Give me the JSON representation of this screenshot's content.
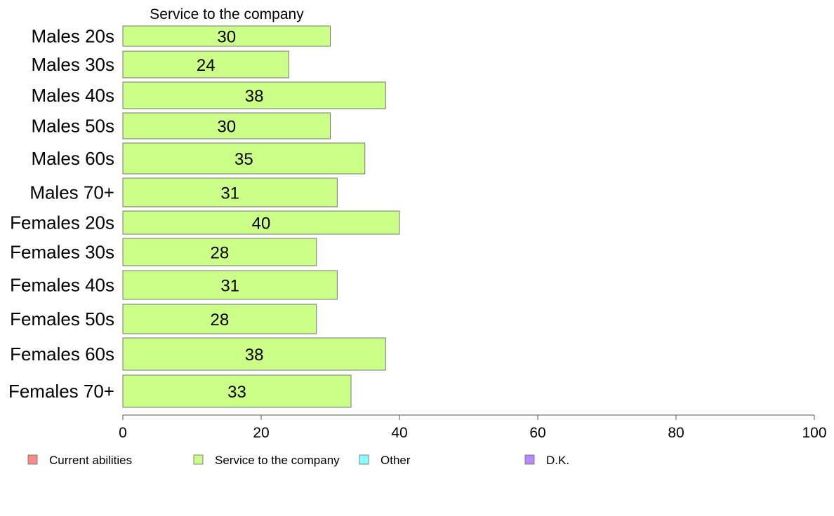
{
  "chart_data": {
    "type": "bar",
    "orientation": "horizontal",
    "title": "Service to the company",
    "categories": [
      "Males 20s",
      "Males 30s",
      "Males 40s",
      "Males 50s",
      "Males 60s",
      "Males 70+",
      "Females 20s",
      "Females 30s",
      "Females 40s",
      "Females 50s",
      "Females 60s",
      "Females 70+"
    ],
    "series": [
      {
        "name": "Service to the company",
        "values": [
          30,
          24,
          38,
          30,
          35,
          31,
          40,
          28,
          31,
          28,
          38,
          33
        ],
        "color": "#ccff88"
      }
    ],
    "xlim": [
      0,
      100
    ],
    "xticks": [
      0,
      20,
      40,
      60,
      80,
      100
    ],
    "grid": false,
    "legend": {
      "placement": "bottom",
      "items": [
        {
          "label": "Current abilities",
          "color": "#ff8a8a"
        },
        {
          "label": "Service to the company",
          "color": "#ccff88"
        },
        {
          "label": "Other",
          "color": "#88ffff"
        },
        {
          "label": "D.K.",
          "color": "#bb88ff"
        }
      ]
    }
  }
}
